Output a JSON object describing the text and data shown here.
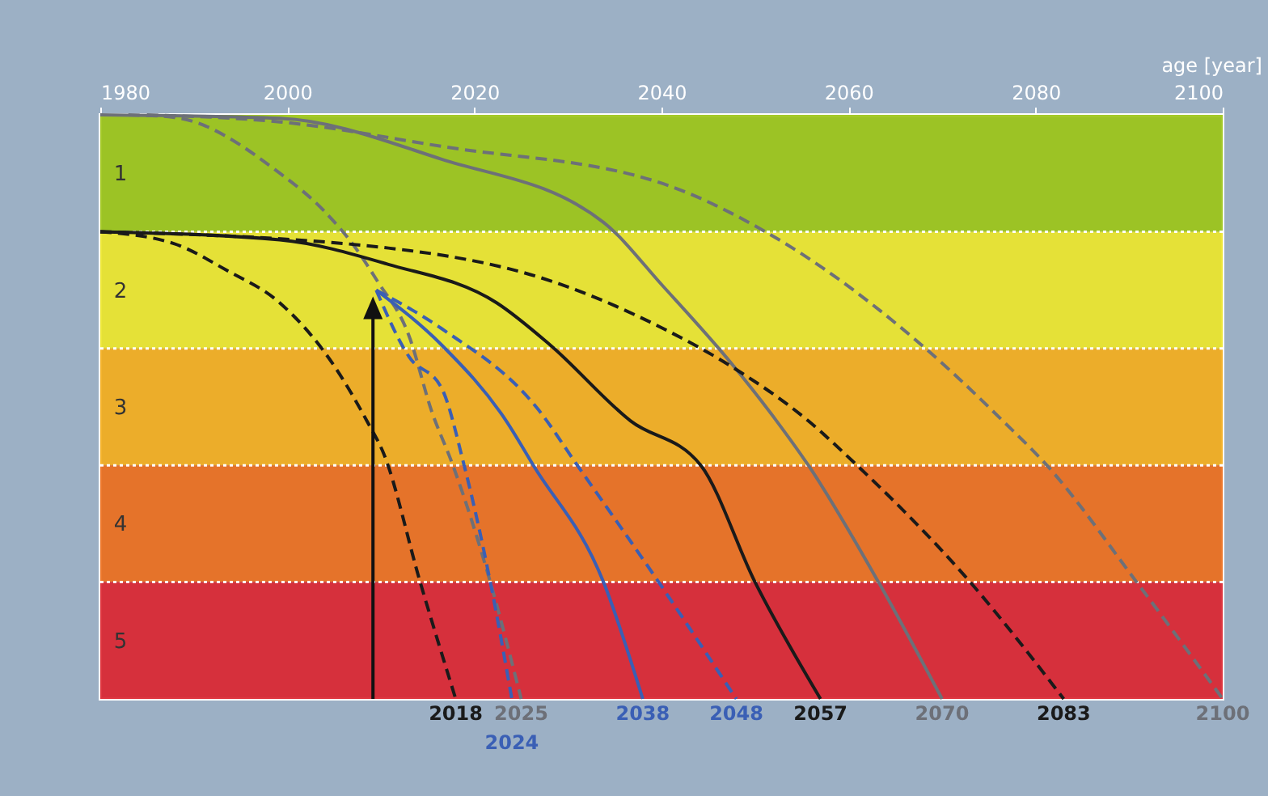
{
  "chart_data": {
    "type": "line",
    "xlabel": "age [year]",
    "xlim": [
      1980,
      2100
    ],
    "xticks": [
      1980,
      2000,
      2020,
      2040,
      2060,
      2080,
      2100
    ],
    "ylim": [
      5.5,
      0.5
    ],
    "yticks": [
      1,
      2,
      3,
      4,
      5
    ],
    "bands": [
      {
        "axis": "y",
        "from": 0.5,
        "to": 1.5,
        "color": "#9cc417"
      },
      {
        "axis": "y",
        "from": 1.5,
        "to": 2.5,
        "color": "#ece52a"
      },
      {
        "axis": "y",
        "from": 2.5,
        "to": 3.5,
        "color": "#f3ad1c"
      },
      {
        "axis": "y",
        "from": 3.5,
        "to": 4.5,
        "color": "#eb6e1c"
      },
      {
        "axis": "y",
        "from": 4.5,
        "to": 5.5,
        "color": "#db2530"
      }
    ],
    "ref_lines": [
      {
        "axis": "y",
        "value": 1.5,
        "color": "#ffffff",
        "line_style": "dotted"
      },
      {
        "axis": "y",
        "value": 2.5,
        "color": "#ffffff",
        "line_style": "dotted"
      },
      {
        "axis": "y",
        "value": 3.5,
        "color": "#ffffff",
        "line_style": "dotted"
      },
      {
        "axis": "y",
        "value": 4.5,
        "color": "#ffffff",
        "line_style": "dotted"
      }
    ],
    "series": [
      {
        "color": "#6d7078",
        "line_style": "solid",
        "x": [
          1980,
          1999.2,
          2016.5,
          2033.8,
          2040.2,
          2047.6,
          2052.3,
          2055.7,
          2063.2,
          2070
        ],
        "values": [
          0.5,
          0.53,
          0.88,
          1.42,
          1.97,
          2.64,
          3.12,
          3.5,
          4.5,
          5.5
        ]
      },
      {
        "color": "#6d7078",
        "line_style": "dashed",
        "x": [
          1985,
          1999.2,
          2016.5,
          2040.2,
          2051.1,
          2067.8,
          2076.5,
          2081.2,
          2090.8,
          2100
        ],
        "values": [
          0.5,
          0.56,
          0.77,
          1.09,
          1.5,
          2.47,
          3.12,
          3.5,
          4.5,
          5.5
        ]
      },
      {
        "color": "#6d7078",
        "line_style": "dashed",
        "x": [
          1983,
          1987.8,
          1999.2,
          2003.9,
          2007.3,
          2009.6,
          2013,
          2015.4,
          2017.7,
          2021.7,
          2025
        ],
        "values": [
          0.5,
          0.52,
          1.0,
          1.32,
          1.64,
          1.92,
          2.39,
          3.03,
          3.5,
          4.5,
          5.5
        ]
      },
      {
        "color": "#1a1a1a",
        "line_style": "solid",
        "x": [
          1980,
          1999.2,
          2010.8,
          2022.4,
          2028.1,
          2036.7,
          2044.2,
          2050,
          2057
        ],
        "values": [
          1.5,
          1.57,
          1.78,
          2.11,
          2.47,
          3.12,
          3.5,
          4.5,
          5.5
        ]
      },
      {
        "color": "#1a1a1a",
        "line_style": "dashed",
        "x": [
          1980,
          2010.8,
          2028.1,
          2040.2,
          2047.6,
          2055.7,
          2060.9,
          2073,
          2083
        ],
        "values": [
          1.5,
          1.64,
          1.92,
          2.33,
          2.66,
          3.12,
          3.5,
          4.5,
          5.5
        ]
      },
      {
        "color": "#1a1a1a",
        "line_style": "dashed",
        "x": [
          1980,
          1987.8,
          1993.5,
          1999.2,
          2005.1,
          2008.5,
          2010.3,
          2014.2,
          2018
        ],
        "values": [
          1.5,
          1.6,
          1.83,
          2.11,
          2.66,
          3.12,
          3.4,
          4.5,
          5.5
        ]
      },
      {
        "color": "#3a5fb5",
        "line_style": "dashed",
        "x": [
          2009.5,
          2013,
          2016.5,
          2018.9,
          2021.7,
          2024
        ],
        "values": [
          2.0,
          2.57,
          2.84,
          3.5,
          4.5,
          5.5
        ]
      },
      {
        "color": "#3a5fb5",
        "line_style": "solid",
        "x": [
          2009.5,
          2016.5,
          2023.4,
          2026.3,
          2033.8,
          2038
        ],
        "values": [
          2.0,
          2.47,
          3.12,
          3.5,
          4.5,
          5.5
        ]
      },
      {
        "color": "#3a5fb5",
        "line_style": "dashed",
        "x": [
          2009.5,
          2016.5,
          2026.9,
          2031,
          2039.7,
          2048
        ],
        "values": [
          2.0,
          2.33,
          3.03,
          3.5,
          4.5,
          5.5
        ]
      }
    ],
    "annotations": [
      {
        "text": "2018",
        "x": 2018,
        "y": 5.5
      },
      {
        "text": "2025",
        "x": 2025,
        "y": 5.5
      },
      {
        "text": "2057",
        "x": 2057,
        "y": 5.5
      },
      {
        "text": "2070",
        "x": 2070,
        "y": 5.5
      },
      {
        "text": "2083",
        "x": 2083,
        "y": 5.5
      },
      {
        "text": "2100",
        "x": 2100,
        "y": 5.5
      },
      {
        "text": "2024",
        "x": 2024,
        "y": 5.5
      },
      {
        "text": "2038",
        "x": 2038,
        "y": 5.5
      },
      {
        "text": "2048",
        "x": 2048,
        "y": 5.5
      }
    ]
  }
}
